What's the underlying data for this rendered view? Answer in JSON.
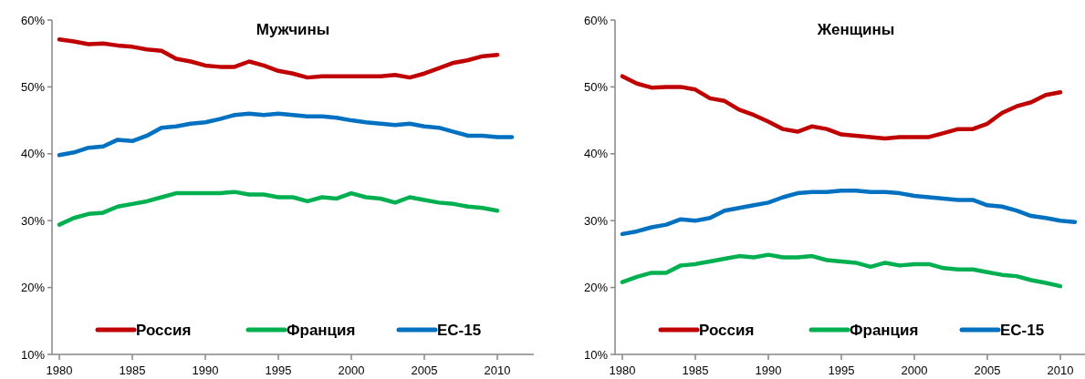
{
  "chart_data": [
    {
      "type": "line",
      "title": "Мужчины",
      "x": [
        1980,
        1981,
        1982,
        1983,
        1984,
        1985,
        1986,
        1987,
        1988,
        1989,
        1990,
        1991,
        1992,
        1993,
        1994,
        1995,
        1996,
        1997,
        1998,
        1999,
        2000,
        2001,
        2002,
        2003,
        2004,
        2005,
        2006,
        2007,
        2008,
        2009,
        2010,
        2011
      ],
      "xlim": [
        1979.5,
        2012.5
      ],
      "xticks": [
        1980,
        1985,
        1990,
        1995,
        2000,
        2005,
        2010
      ],
      "ylim": [
        10,
        60
      ],
      "yticks": [
        {
          "value": 10,
          "label": "10%"
        },
        {
          "value": 20,
          "label": "20%"
        },
        {
          "value": 30,
          "label": "30%"
        },
        {
          "value": 40,
          "label": "40%"
        },
        {
          "value": 50,
          "label": "50%"
        },
        {
          "value": 60,
          "label": "60%"
        }
      ],
      "legend": "bottom",
      "marker": "none",
      "line_style": "solid",
      "series": [
        {
          "name": "Россия",
          "color": "#c00000",
          "values": [
            57.1,
            56.8,
            56.4,
            56.5,
            56.2,
            56.0,
            55.6,
            55.4,
            54.2,
            53.8,
            53.2,
            53.0,
            53.0,
            53.8,
            53.2,
            52.4,
            52.0,
            51.4,
            51.6,
            51.6,
            51.6,
            51.6,
            51.6,
            51.8,
            51.4,
            52.0,
            52.8,
            53.6,
            54.0,
            54.6,
            54.8,
            null
          ]
        },
        {
          "name": "Франция",
          "color": "#00b050",
          "values": [
            29.4,
            30.4,
            31.0,
            31.2,
            32.1,
            32.5,
            32.9,
            33.5,
            34.1,
            34.1,
            34.1,
            34.1,
            34.3,
            33.9,
            33.9,
            33.5,
            33.5,
            32.9,
            33.5,
            33.3,
            34.1,
            33.5,
            33.3,
            32.7,
            33.5,
            33.1,
            32.7,
            32.5,
            32.1,
            31.9,
            31.5,
            null
          ]
        },
        {
          "name": "ЕС-15",
          "color": "#0070c0",
          "values": [
            39.8,
            40.2,
            40.9,
            41.1,
            42.1,
            41.9,
            42.7,
            43.9,
            44.1,
            44.5,
            44.7,
            45.2,
            45.8,
            46.0,
            45.8,
            46.0,
            45.8,
            45.6,
            45.6,
            45.4,
            45.0,
            44.7,
            44.5,
            44.3,
            44.5,
            44.1,
            43.9,
            43.3,
            42.7,
            42.7,
            42.5,
            42.5
          ]
        }
      ]
    },
    {
      "type": "line",
      "title": "Женщины",
      "x": [
        1980,
        1981,
        1982,
        1983,
        1984,
        1985,
        1986,
        1987,
        1988,
        1989,
        1990,
        1991,
        1992,
        1993,
        1994,
        1995,
        1996,
        1997,
        1998,
        1999,
        2000,
        2001,
        2002,
        2003,
        2004,
        2005,
        2006,
        2007,
        2008,
        2009,
        2010,
        2011
      ],
      "xlim": [
        1979.5,
        2012.5
      ],
      "xticks": [
        1980,
        1985,
        1990,
        1995,
        2000,
        2005,
        2010
      ],
      "ylim": [
        10,
        60
      ],
      "yticks": [
        {
          "value": 10,
          "label": "10%"
        },
        {
          "value": 20,
          "label": "20%"
        },
        {
          "value": 30,
          "label": "30%"
        },
        {
          "value": 40,
          "label": "40%"
        },
        {
          "value": 50,
          "label": "50%"
        },
        {
          "value": 60,
          "label": "60%"
        }
      ],
      "legend": "bottom",
      "marker": "none",
      "line_style": "solid",
      "series": [
        {
          "name": "Россия",
          "color": "#c00000",
          "values": [
            51.6,
            50.5,
            49.9,
            50.0,
            50.0,
            49.6,
            48.3,
            47.9,
            46.6,
            45.8,
            44.8,
            43.7,
            43.3,
            44.1,
            43.7,
            42.9,
            42.7,
            42.5,
            42.3,
            42.5,
            42.5,
            42.5,
            43.1,
            43.7,
            43.7,
            44.5,
            46.1,
            47.1,
            47.7,
            48.8,
            49.2,
            null
          ]
        },
        {
          "name": "Франция",
          "color": "#00b050",
          "values": [
            20.8,
            21.6,
            22.2,
            22.2,
            23.3,
            23.5,
            23.9,
            24.3,
            24.7,
            24.5,
            24.9,
            24.5,
            24.5,
            24.7,
            24.1,
            23.9,
            23.7,
            23.1,
            23.7,
            23.3,
            23.5,
            23.5,
            22.9,
            22.7,
            22.7,
            22.3,
            21.9,
            21.7,
            21.1,
            20.7,
            20.2,
            null
          ]
        },
        {
          "name": "ЕС-15",
          "color": "#0070c0",
          "values": [
            28.0,
            28.4,
            29.0,
            29.4,
            30.2,
            30.0,
            30.4,
            31.5,
            31.9,
            32.3,
            32.7,
            33.5,
            34.1,
            34.3,
            34.3,
            34.5,
            34.5,
            34.3,
            34.3,
            34.1,
            33.7,
            33.5,
            33.3,
            33.1,
            33.1,
            32.3,
            32.1,
            31.5,
            30.7,
            30.4,
            30.0,
            29.8
          ]
        }
      ]
    }
  ]
}
